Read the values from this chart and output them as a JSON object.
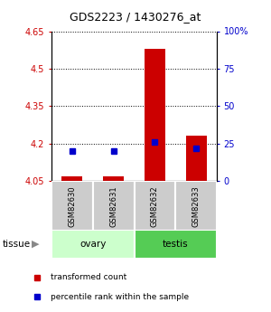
{
  "title": "GDS2223 / 1430276_at",
  "samples": [
    "GSM82630",
    "GSM82631",
    "GSM82632",
    "GSM82633"
  ],
  "transformed_counts": [
    4.07,
    4.07,
    4.58,
    4.23
  ],
  "percentile_ranks": [
    20,
    20,
    26,
    22
  ],
  "ylim_left": [
    4.05,
    4.65
  ],
  "ylim_right": [
    0,
    100
  ],
  "yticks_left": [
    4.05,
    4.2,
    4.35,
    4.5,
    4.65
  ],
  "yticks_right": [
    0,
    25,
    50,
    75,
    100
  ],
  "ytick_labels_left": [
    "4.05",
    "4.2",
    "4.35",
    "4.5",
    "4.65"
  ],
  "ytick_labels_right": [
    "0",
    "25",
    "50",
    "75",
    "100%"
  ],
  "bar_color": "#cc0000",
  "dot_color": "#0000cc",
  "bar_width": 0.5,
  "left_axis_color": "#cc0000",
  "right_axis_color": "#0000cc",
  "legend_red_label": "transformed count",
  "legend_blue_label": "percentile rank within the sample",
  "ovary_color": "#ccffcc",
  "testis_color": "#55cc55",
  "sample_box_color": "#cccccc"
}
